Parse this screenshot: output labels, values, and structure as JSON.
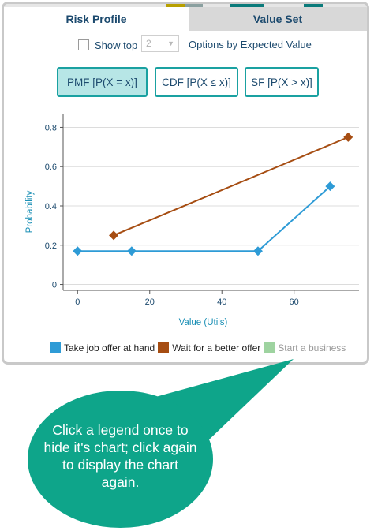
{
  "tabs": {
    "active": "Risk Profile",
    "inactive": "Value Set"
  },
  "options": {
    "show_top_label": "Show top",
    "show_top_checked": false,
    "top_count": "2",
    "suffix": "Options by Expected Value"
  },
  "function_buttons": [
    {
      "label": "PMF [P(X = x)]",
      "active": true
    },
    {
      "label": "CDF [P(X ≤ x)]",
      "active": false
    },
    {
      "label": "SF [P(X > x)]",
      "active": false
    }
  ],
  "chart_data": {
    "type": "line",
    "xlabel": "Value (Utils)",
    "ylabel": "Probability",
    "xlim": [
      -4,
      78
    ],
    "ylim": [
      -0.03,
      0.85
    ],
    "xticks": [
      0,
      20,
      40,
      60
    ],
    "yticks": [
      0,
      0.2,
      0.4,
      0.6,
      0.8
    ],
    "ytick_labels": [
      "0",
      "0.2",
      "0.4",
      "0.6",
      "0.8"
    ],
    "grid": "horizontal",
    "series": [
      {
        "name": "Take job offer at hand",
        "color": "#2e9bd6",
        "marker": "diamond",
        "visible": true,
        "points": [
          [
            0,
            0.17
          ],
          [
            15,
            0.17
          ],
          [
            50,
            0.17
          ],
          [
            70,
            0.5
          ]
        ]
      },
      {
        "name": "Wait for a better offer",
        "color": "#a64d12",
        "marker": "diamond",
        "visible": true,
        "points": [
          [
            10,
            0.25
          ],
          [
            75,
            0.75
          ]
        ]
      },
      {
        "name": "Start a business",
        "color": "#9ed3a0",
        "marker": "diamond",
        "visible": false,
        "points": []
      }
    ],
    "legend_position": "bottom"
  },
  "callout": {
    "text": "Click a legend once to hide it's chart; click again to display the chart again.",
    "color": "#0ea58a"
  }
}
